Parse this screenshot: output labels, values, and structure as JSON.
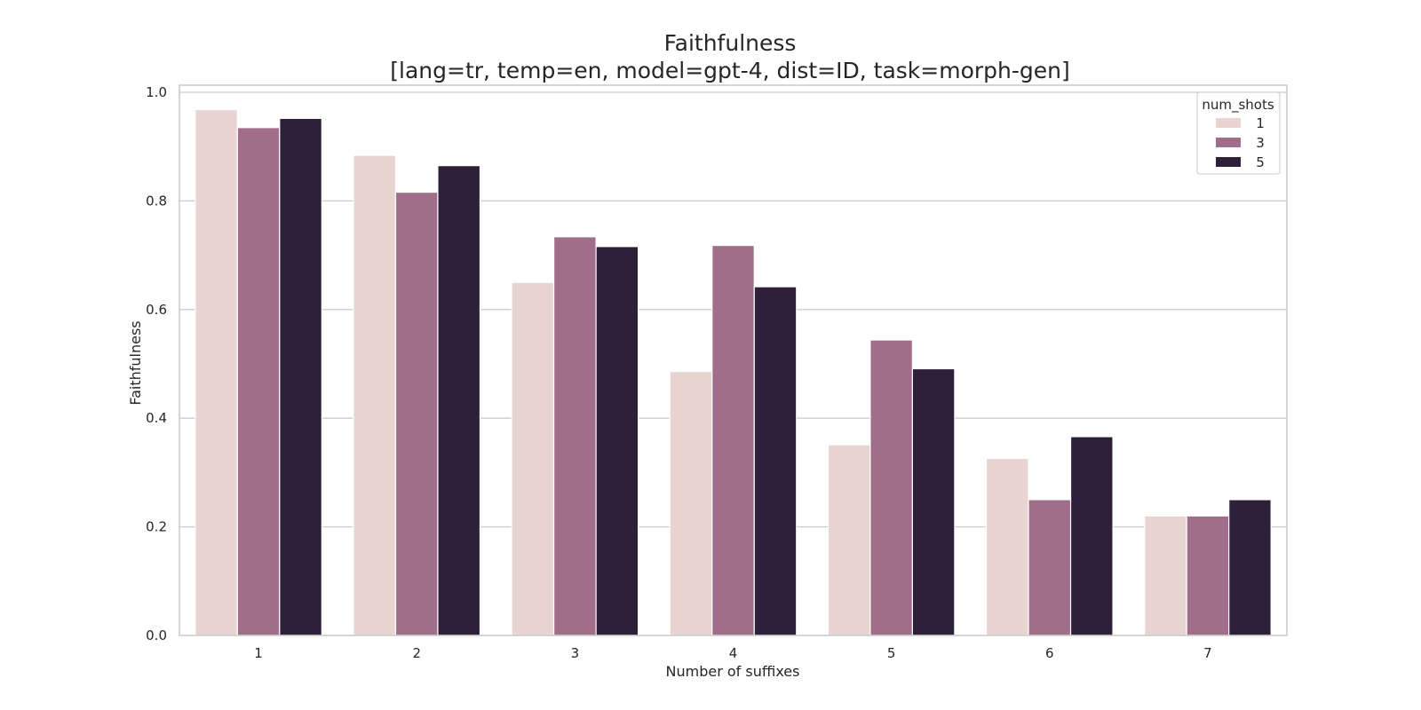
{
  "chart_data": {
    "type": "bar",
    "title": "Faithfulness",
    "subtitle": "[lang=tr, temp=en, model=gpt-4, dist=ID, task=morph-gen]",
    "xlabel": "Number of suffixes",
    "ylabel": "Faithfulness",
    "categories": [
      "1",
      "2",
      "3",
      "4",
      "5",
      "6",
      "7"
    ],
    "ylim": [
      0,
      1.0
    ],
    "yticks": [
      "0.0",
      "0.2",
      "0.4",
      "0.6",
      "0.8",
      "1.0"
    ],
    "grid": "horizontal",
    "legend_title": "num_shots",
    "legend_position": "top-right",
    "series": [
      {
        "name": "1",
        "color": "#e8d5d1",
        "values": [
          0.968,
          0.884,
          0.65,
          0.486,
          0.351,
          0.326,
          0.22
        ]
      },
      {
        "name": "3",
        "color": "#a06e8b",
        "values": [
          0.935,
          0.816,
          0.734,
          0.718,
          0.544,
          0.25,
          0.22
        ]
      },
      {
        "name": "5",
        "color": "#2e2039",
        "values": [
          0.952,
          0.865,
          0.716,
          0.642,
          0.491,
          0.366,
          0.25
        ]
      }
    ]
  }
}
